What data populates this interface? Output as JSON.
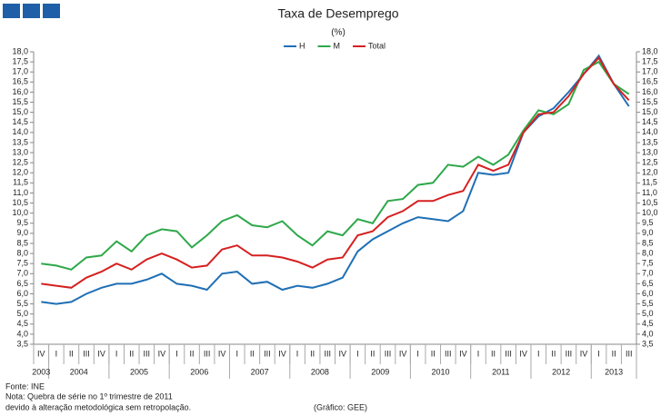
{
  "chart_data": {
    "type": "line",
    "title": "Taxa de Desemprego",
    "subtitle": "(%)",
    "year_groups": [
      {
        "year": "2003",
        "quarters": [
          "IV"
        ]
      },
      {
        "year": "2004",
        "quarters": [
          "I",
          "II",
          "III",
          "IV"
        ]
      },
      {
        "year": "2005",
        "quarters": [
          "I",
          "II",
          "III",
          "IV"
        ]
      },
      {
        "year": "2006",
        "quarters": [
          "I",
          "II",
          "III",
          "IV"
        ]
      },
      {
        "year": "2007",
        "quarters": [
          "I",
          "II",
          "III",
          "IV"
        ]
      },
      {
        "year": "2008",
        "quarters": [
          "I",
          "II",
          "III",
          "IV"
        ]
      },
      {
        "year": "2009",
        "quarters": [
          "I",
          "II",
          "III",
          "IV"
        ]
      },
      {
        "year": "2010",
        "quarters": [
          "I",
          "II",
          "III",
          "IV"
        ]
      },
      {
        "year": "2011",
        "quarters": [
          "I",
          "II",
          "III",
          "IV"
        ]
      },
      {
        "year": "2012",
        "quarters": [
          "I",
          "II",
          "III",
          "IV"
        ]
      },
      {
        "year": "2013",
        "quarters": [
          "I",
          "II",
          "III"
        ]
      }
    ],
    "series": [
      {
        "name": "H",
        "color": "#1f6fb5",
        "values": [
          5.6,
          5.5,
          5.6,
          6.0,
          6.3,
          6.5,
          6.5,
          6.7,
          7.0,
          6.5,
          6.4,
          6.2,
          7.0,
          7.1,
          6.5,
          6.6,
          6.2,
          6.4,
          6.3,
          6.5,
          6.8,
          8.1,
          8.7,
          9.1,
          9.5,
          9.8,
          9.7,
          9.6,
          10.1,
          12.0,
          11.9,
          12.0,
          14.0,
          14.8,
          15.2,
          16.0,
          16.9,
          17.8,
          16.4,
          15.3
        ]
      },
      {
        "name": "M",
        "color": "#2ea84a",
        "values": [
          7.5,
          7.4,
          7.2,
          7.8,
          7.9,
          8.6,
          8.1,
          8.9,
          9.2,
          9.1,
          8.3,
          8.9,
          9.6,
          9.9,
          9.4,
          9.3,
          9.6,
          8.9,
          8.4,
          9.1,
          8.9,
          9.7,
          9.5,
          10.6,
          10.7,
          11.4,
          11.5,
          12.4,
          12.3,
          12.8,
          12.4,
          12.9,
          14.1,
          15.1,
          14.9,
          15.4,
          17.1,
          17.5,
          16.4,
          15.9
        ]
      },
      {
        "name": "Total",
        "color": "#d62020",
        "values": [
          6.5,
          6.4,
          6.3,
          6.8,
          7.1,
          7.5,
          7.2,
          7.7,
          8.0,
          7.7,
          7.3,
          7.4,
          8.2,
          8.4,
          7.9,
          7.9,
          7.8,
          7.6,
          7.3,
          7.7,
          7.8,
          8.9,
          9.1,
          9.8,
          10.1,
          10.6,
          10.6,
          10.9,
          11.1,
          12.4,
          12.1,
          12.4,
          14.0,
          14.9,
          15.0,
          15.8,
          16.9,
          17.7,
          16.4,
          15.6
        ]
      }
    ],
    "ylim": [
      3.5,
      18
    ],
    "yticks": [
      {
        "value": 3.5,
        "label": "3,5"
      },
      {
        "value": 4,
        "label": "4,0"
      },
      {
        "value": 4.5,
        "label": "4,5"
      },
      {
        "value": 5,
        "label": "5,0"
      },
      {
        "value": 5.5,
        "label": "5,5"
      },
      {
        "value": 6,
        "label": "6,0"
      },
      {
        "value": 6.5,
        "label": "6,5"
      },
      {
        "value": 7,
        "label": "7,0"
      },
      {
        "value": 7.5,
        "label": "7,5"
      },
      {
        "value": 8,
        "label": "8,0"
      },
      {
        "value": 8.5,
        "label": "8,5"
      },
      {
        "value": 9,
        "label": "9,0"
      },
      {
        "value": 9.5,
        "label": "9,5"
      },
      {
        "value": 10,
        "label": "10,0"
      },
      {
        "value": 10.5,
        "label": "10,5"
      },
      {
        "value": 11,
        "label": "11,0"
      },
      {
        "value": 11.5,
        "label": "11,5"
      },
      {
        "value": 12,
        "label": "12,0"
      },
      {
        "value": 12.5,
        "label": "12,5"
      },
      {
        "value": 13,
        "label": "13,0"
      },
      {
        "value": 13.5,
        "label": "13,5"
      },
      {
        "value": 14,
        "label": "14,0"
      },
      {
        "value": 14.5,
        "label": "14,5"
      },
      {
        "value": 15,
        "label": "15,0"
      },
      {
        "value": 15.5,
        "label": "15,5"
      },
      {
        "value": 16,
        "label": "16,0"
      },
      {
        "value": 16.5,
        "label": "16,5"
      },
      {
        "value": 17,
        "label": "17,0"
      },
      {
        "value": 17.5,
        "label": "17,5"
      },
      {
        "value": 18,
        "label": "18,0"
      }
    ],
    "legend": "top",
    "source": "Fonte: INE",
    "notes": [
      "Nota: Quebra de série no 1º trimestre de 2011",
      "devido à alteração metodológica sem retropolação."
    ],
    "credit": "(Gráfico: GEE)"
  }
}
